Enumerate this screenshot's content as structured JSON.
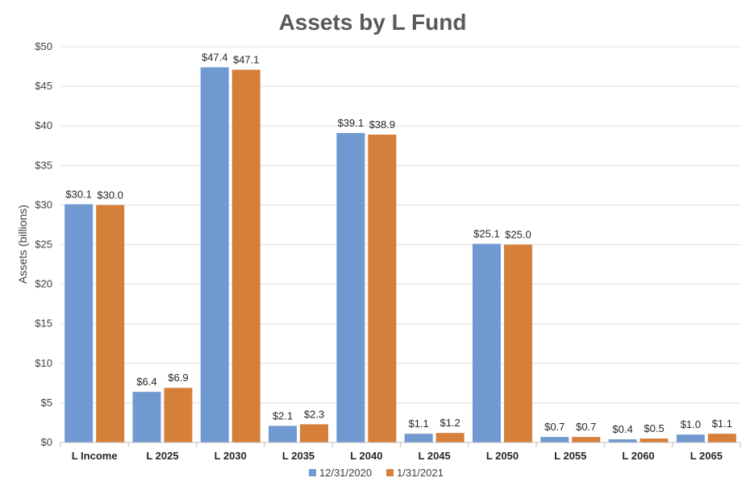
{
  "chart_data": {
    "type": "bar",
    "title": "Assets by L Fund",
    "xlabel": "",
    "ylabel": "Assets (billions)",
    "ylim": [
      0,
      50
    ],
    "yticks": [
      0,
      5,
      10,
      15,
      20,
      25,
      30,
      35,
      40,
      45,
      50
    ],
    "ytick_labels": [
      "$0",
      "$5",
      "$10",
      "$15",
      "$20",
      "$25",
      "$30",
      "$35",
      "$40",
      "$45",
      "$50"
    ],
    "categories": [
      "L Income",
      "L 2025",
      "L 2030",
      "L 2035",
      "L 2040",
      "L 2045",
      "L 2050",
      "L 2055",
      "L 2060",
      "L 2065"
    ],
    "series": [
      {
        "name": "12/31/2020",
        "color": "#7099d1",
        "values": [
          30.1,
          6.4,
          47.4,
          2.1,
          39.1,
          1.1,
          25.1,
          0.7,
          0.4,
          1.0
        ],
        "labels": [
          "$30.1",
          "$6.4",
          "$47.4",
          "$2.1",
          "$39.1",
          "$1.1",
          "$25.1",
          "$0.7",
          "$0.4",
          "$1.0"
        ]
      },
      {
        "name": "1/31/2021",
        "color": "#d57f3a",
        "values": [
          30.0,
          6.9,
          47.1,
          2.3,
          38.9,
          1.2,
          25.0,
          0.7,
          0.5,
          1.1
        ],
        "labels": [
          "$30.0",
          "$6.9",
          "$47.1",
          "$2.3",
          "$38.9",
          "$1.2",
          "$25.0",
          "$0.7",
          "$0.5",
          "$1.1"
        ]
      }
    ],
    "grid": true,
    "legend_position": "bottom"
  }
}
